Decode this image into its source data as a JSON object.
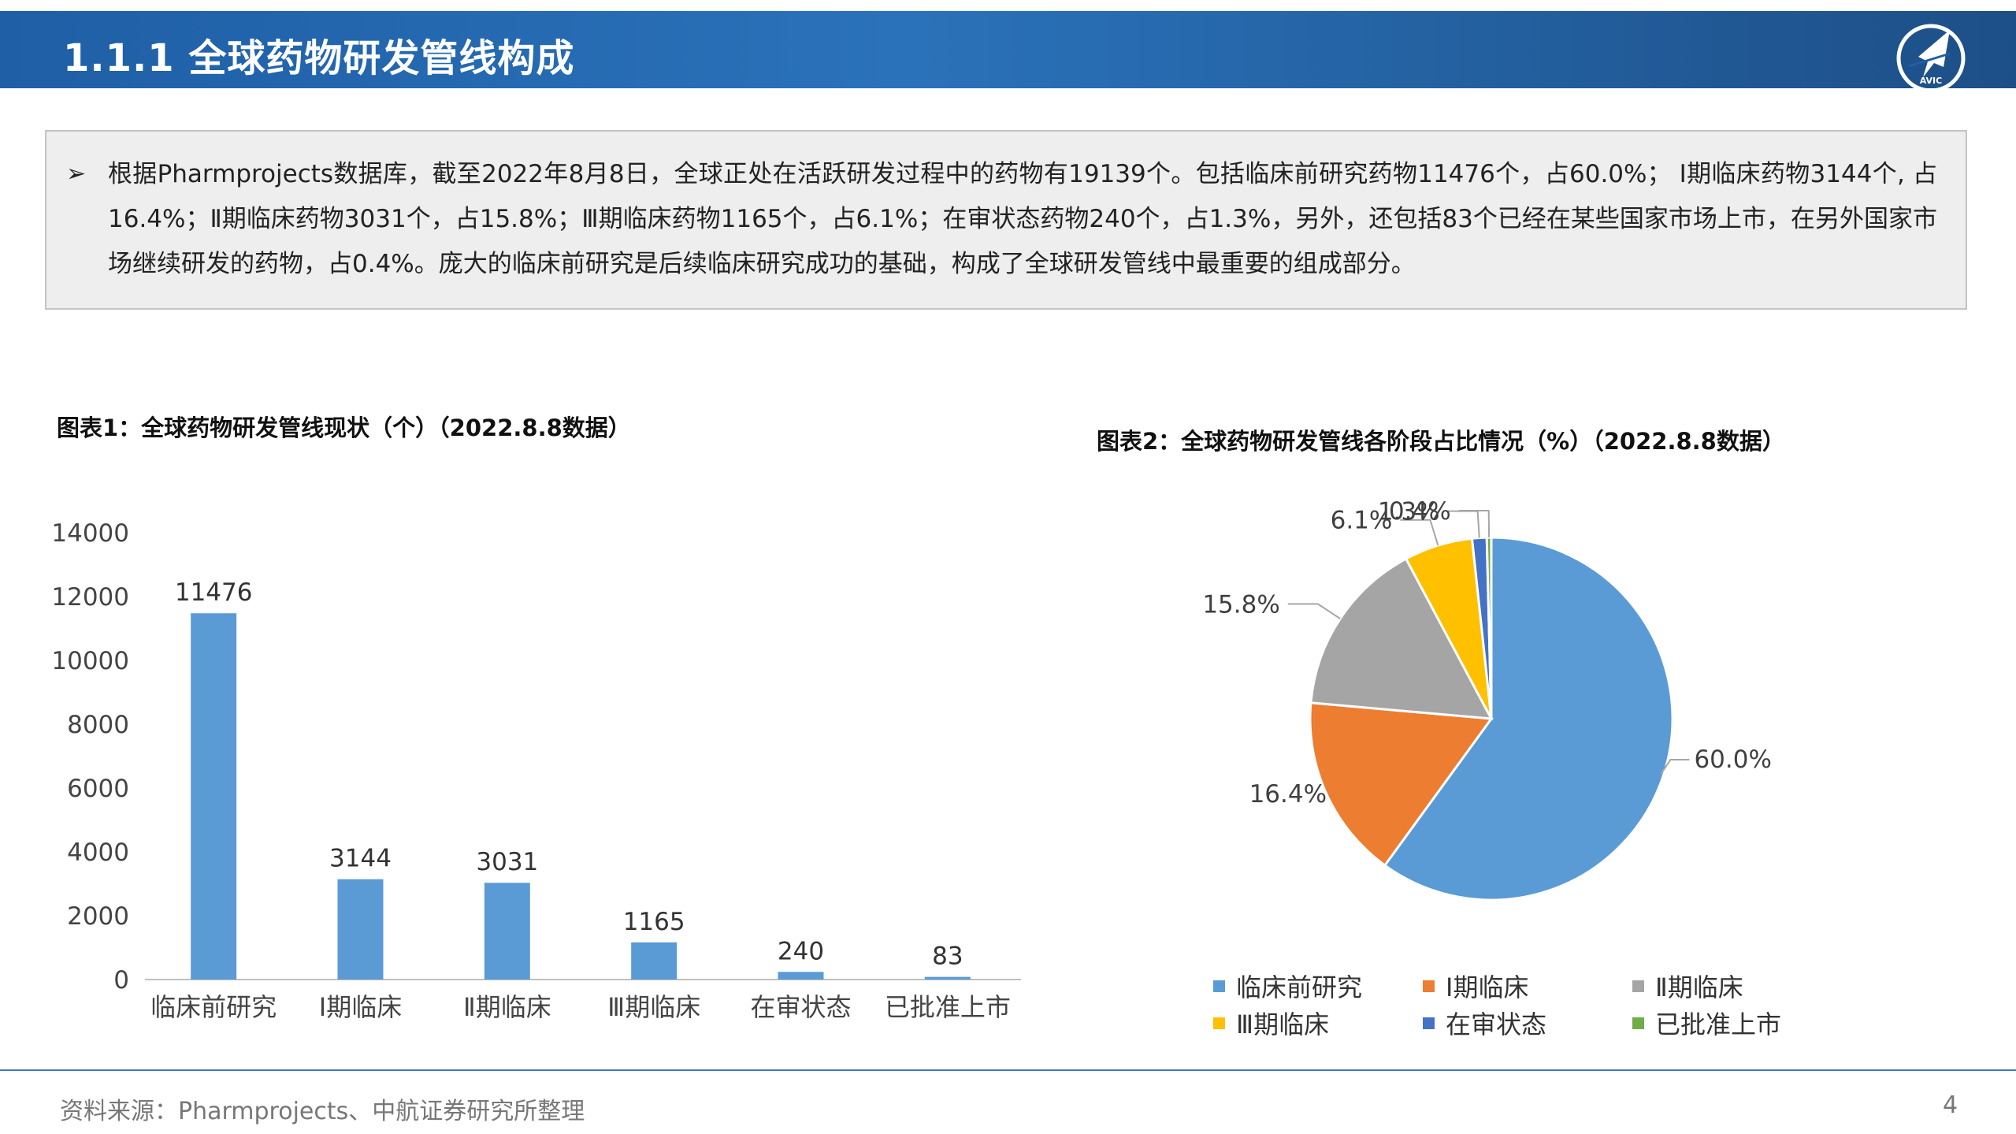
{
  "header": {
    "title": "1.1.1 全球药物研发管线构成",
    "logo_text": "AVIC",
    "logo_icon": "avic-aircraft-logo-icon"
  },
  "summary": {
    "bullet": "➢",
    "text": "根据Pharmprojects数据库，截至2022年8月8日，全球正处在活跃研发过程中的药物有19139个。包括临床前研究药物11476个，占60.0%； Ⅰ期临床药物3144个, 占16.4%；Ⅱ期临床药物3031个，占15.8%；Ⅲ期临床药物1165个，占6.1%；在审状态药物240个，占1.3%，另外，还包括83个已经在某些国家市场上市，在另外国家市场继续研发的药物，占0.4%。庞大的临床前研究是后续临床研究成功的基础，构成了全球研发管线中最重要的组成部分。"
  },
  "chart_data": [
    {
      "type": "bar",
      "title": "图表1：全球药物研发管线现状（个）（2022.8.8数据）",
      "categories": [
        "临床前研究",
        "Ⅰ期临床",
        "Ⅱ期临床",
        "Ⅲ期临床",
        "在审状态",
        "已批准上市"
      ],
      "values": [
        11476,
        3144,
        3031,
        1165,
        240,
        83
      ],
      "data_labels": [
        "11476",
        "3144",
        "3031",
        "1165",
        "240",
        "83"
      ],
      "yticks": [
        "0",
        "2000",
        "4000",
        "6000",
        "8000",
        "10000",
        "12000",
        "14000"
      ],
      "ylim": [
        0,
        14000
      ],
      "color": "#5b9bd5",
      "grid": false
    },
    {
      "type": "pie",
      "title": "图表2：全球药物研发管线各阶段占比情况（%）（2022.8.8数据）",
      "labels": [
        "临床前研究",
        "Ⅰ期临床",
        "Ⅱ期临床",
        "Ⅲ期临床",
        "在审状态",
        "已批准上市"
      ],
      "values": [
        60.0,
        16.4,
        15.8,
        6.1,
        1.3,
        0.4
      ],
      "data_labels": [
        "60.0%",
        "16.4%",
        "15.8%",
        "6.1%",
        "1.3%",
        "0.4%"
      ],
      "colors": [
        "#5b9bd5",
        "#ed7d31",
        "#a5a5a5",
        "#ffc000",
        "#4472c4",
        "#70ad47"
      ],
      "legend_position": "bottom"
    }
  ],
  "footer": {
    "source": "资料来源：Pharmprojects、中航证券研究所整理",
    "page": "4"
  }
}
